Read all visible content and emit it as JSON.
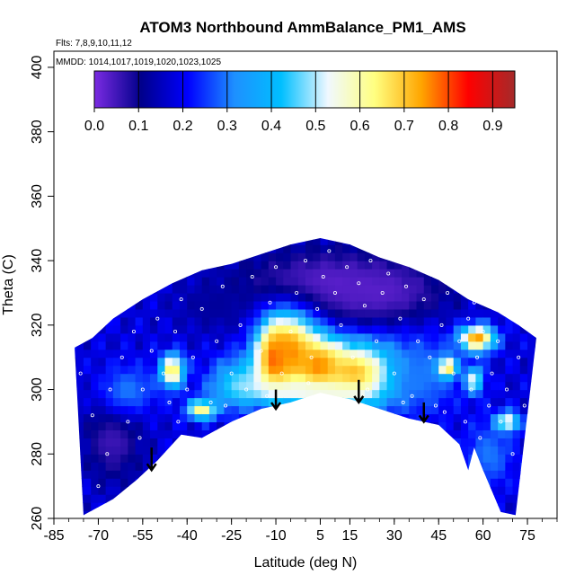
{
  "chart_data": {
    "type": "heatmap",
    "title": "ATOM3 Northbound AmmBalance_PM1_AMS",
    "flights_note": "Flts: 7,8,9,10,11,12",
    "dates_note": "MMDD: 1014,1017,1019,1020,1023,1025",
    "xlabel": "Latitude (deg N)",
    "ylabel": "Theta (C)",
    "xlim": [
      -85,
      85
    ],
    "ylim": [
      260,
      405
    ],
    "x_ticks": [
      -85,
      -70,
      -55,
      -40,
      -25,
      -10,
      5,
      15,
      30,
      45,
      60,
      75
    ],
    "x_tick_labels": [
      "-85",
      "-70",
      "-55",
      "-40",
      "-25",
      "-10",
      "5",
      "15",
      "30",
      "45",
      "60",
      "75"
    ],
    "y_ticks": [
      260,
      280,
      300,
      320,
      340,
      360,
      380,
      400
    ],
    "y_tick_labels": [
      "260",
      "280",
      "300",
      "320",
      "340",
      "360",
      "380",
      "400"
    ],
    "colorbar": {
      "range": [
        0,
        0.95
      ],
      "ticks": [
        0.0,
        0.1,
        0.2,
        0.3,
        0.4,
        0.5,
        0.6,
        0.7,
        0.8,
        0.9
      ],
      "tick_labels": [
        "0.0",
        "0.1",
        "0.2",
        "0.3",
        "0.4",
        "0.5",
        "0.6",
        "0.7",
        "0.8",
        "0.9"
      ],
      "colors": [
        "#7B2BE2",
        "#00008B",
        "#0000FF",
        "#1E90FF",
        "#00BFFF",
        "#F0F8FF",
        "#FFFF80",
        "#FFA500",
        "#FF0000",
        "#A52A2A"
      ]
    },
    "coverage_lower_boundary": [
      {
        "lat": -75,
        "theta": 261
      },
      {
        "lat": -65,
        "theta": 266
      },
      {
        "lat": -57,
        "theta": 272
      },
      {
        "lat": -50,
        "theta": 278
      },
      {
        "lat": -42,
        "theta": 286
      },
      {
        "lat": -35,
        "theta": 285
      },
      {
        "lat": -25,
        "theta": 290
      },
      {
        "lat": -15,
        "theta": 294
      },
      {
        "lat": -5,
        "theta": 296
      },
      {
        "lat": 5,
        "theta": 299
      },
      {
        "lat": 15,
        "theta": 297
      },
      {
        "lat": 25,
        "theta": 294
      },
      {
        "lat": 35,
        "theta": 291
      },
      {
        "lat": 45,
        "theta": 289
      },
      {
        "lat": 52,
        "theta": 283
      },
      {
        "lat": 55,
        "theta": 275
      },
      {
        "lat": 57,
        "theta": 282
      },
      {
        "lat": 60,
        "theta": 275
      },
      {
        "lat": 66,
        "theta": 262
      },
      {
        "lat": 71,
        "theta": 261
      }
    ],
    "coverage_upper_boundary": [
      {
        "lat": -78,
        "theta": 313
      },
      {
        "lat": -72,
        "theta": 316
      },
      {
        "lat": -65,
        "theta": 322
      },
      {
        "lat": -55,
        "theta": 328
      },
      {
        "lat": -45,
        "theta": 333
      },
      {
        "lat": -35,
        "theta": 337
      },
      {
        "lat": -25,
        "theta": 339
      },
      {
        "lat": -15,
        "theta": 342
      },
      {
        "lat": -5,
        "theta": 345
      },
      {
        "lat": 5,
        "theta": 347
      },
      {
        "lat": 15,
        "theta": 345
      },
      {
        "lat": 25,
        "theta": 341
      },
      {
        "lat": 35,
        "theta": 338
      },
      {
        "lat": 45,
        "theta": 334
      },
      {
        "lat": 55,
        "theta": 328
      },
      {
        "lat": 65,
        "theta": 324
      },
      {
        "lat": 72,
        "theta": 320
      },
      {
        "lat": 78,
        "theta": 316
      }
    ],
    "background_value": 0.18,
    "features": [
      {
        "lat": 5,
        "theta": 332,
        "value": 0.02,
        "lat_width": 30,
        "theta_height": 12
      },
      {
        "lat": 25,
        "theta": 330,
        "value": 0.03,
        "lat_width": 22,
        "theta_height": 10
      },
      {
        "lat": -30,
        "theta": 326,
        "value": 0.12,
        "lat_width": 14,
        "theta_height": 8
      },
      {
        "lat": -65,
        "theta": 285,
        "value": 0.05,
        "lat_width": 10,
        "theta_height": 14
      },
      {
        "lat": -60,
        "theta": 300,
        "value": 0.3,
        "lat_width": 10,
        "theta_height": 8
      },
      {
        "lat": -45,
        "theta": 306,
        "value": 0.68,
        "lat_width": 4,
        "theta_height": 5
      },
      {
        "lat": -35,
        "theta": 294,
        "value": 0.66,
        "lat_width": 5,
        "theta_height": 3
      },
      {
        "lat": -22,
        "theta": 302,
        "value": 0.45,
        "lat_width": 10,
        "theta_height": 8
      },
      {
        "lat": -10,
        "theta": 310,
        "value": 0.86,
        "lat_width": 6,
        "theta_height": 10
      },
      {
        "lat": -5,
        "theta": 312,
        "value": 0.75,
        "lat_width": 10,
        "theta_height": 12
      },
      {
        "lat": 5,
        "theta": 307,
        "value": 0.8,
        "lat_width": 8,
        "theta_height": 8
      },
      {
        "lat": 17,
        "theta": 305,
        "value": 0.72,
        "lat_width": 16,
        "theta_height": 10
      },
      {
        "lat": 0,
        "theta": 300,
        "value": 0.55,
        "lat_width": 20,
        "theta_height": 3
      },
      {
        "lat": 40,
        "theta": 305,
        "value": 0.3,
        "lat_width": 12,
        "theta_height": 12
      },
      {
        "lat": 48,
        "theta": 307,
        "value": 0.7,
        "lat_width": 3,
        "theta_height": 3
      },
      {
        "lat": 58,
        "theta": 316,
        "value": 0.75,
        "lat_width": 6,
        "theta_height": 4
      },
      {
        "lat": 57,
        "theta": 303,
        "value": 0.55,
        "lat_width": 3,
        "theta_height": 4
      },
      {
        "lat": 68,
        "theta": 290,
        "value": 0.65,
        "lat_width": 4,
        "theta_height": 3
      },
      {
        "lat": 62,
        "theta": 280,
        "value": 0.3,
        "lat_width": 8,
        "theta_height": 10
      }
    ],
    "arrows": [
      {
        "lat": -52,
        "theta_from": 282,
        "theta_to": 275
      },
      {
        "lat": -10,
        "theta_from": 300,
        "theta_to": 294
      },
      {
        "lat": 18,
        "theta_from": 303,
        "theta_to": 296
      },
      {
        "lat": 40,
        "theta_from": 296,
        "theta_to": 290
      }
    ],
    "observation_points": [
      {
        "lat": -76,
        "theta": 305
      },
      {
        "lat": -72,
        "theta": 292
      },
      {
        "lat": -70,
        "theta": 270
      },
      {
        "lat": -66,
        "theta": 300
      },
      {
        "lat": -62,
        "theta": 310
      },
      {
        "lat": -60,
        "theta": 290
      },
      {
        "lat": -58,
        "theta": 318
      },
      {
        "lat": -55,
        "theta": 300
      },
      {
        "lat": -52,
        "theta": 312
      },
      {
        "lat": -50,
        "theta": 322
      },
      {
        "lat": -48,
        "theta": 305
      },
      {
        "lat": -46,
        "theta": 296
      },
      {
        "lat": -44,
        "theta": 318
      },
      {
        "lat": -42,
        "theta": 328
      },
      {
        "lat": -40,
        "theta": 300
      },
      {
        "lat": -38,
        "theta": 310
      },
      {
        "lat": -35,
        "theta": 325
      },
      {
        "lat": -32,
        "theta": 296
      },
      {
        "lat": -30,
        "theta": 315
      },
      {
        "lat": -28,
        "theta": 332
      },
      {
        "lat": -25,
        "theta": 305
      },
      {
        "lat": -22,
        "theta": 320
      },
      {
        "lat": -20,
        "theta": 300
      },
      {
        "lat": -18,
        "theta": 335
      },
      {
        "lat": -15,
        "theta": 312
      },
      {
        "lat": -12,
        "theta": 327
      },
      {
        "lat": -10,
        "theta": 338
      },
      {
        "lat": -8,
        "theta": 305
      },
      {
        "lat": -5,
        "theta": 318
      },
      {
        "lat": -3,
        "theta": 330
      },
      {
        "lat": 0,
        "theta": 340
      },
      {
        "lat": 2,
        "theta": 310
      },
      {
        "lat": 4,
        "theta": 325
      },
      {
        "lat": 6,
        "theta": 335
      },
      {
        "lat": 8,
        "theta": 343
      },
      {
        "lat": 10,
        "theta": 330
      },
      {
        "lat": 12,
        "theta": 320
      },
      {
        "lat": 14,
        "theta": 338
      },
      {
        "lat": 16,
        "theta": 310
      },
      {
        "lat": 18,
        "theta": 333
      },
      {
        "lat": 20,
        "theta": 326
      },
      {
        "lat": 22,
        "theta": 340
      },
      {
        "lat": 24,
        "theta": 315
      },
      {
        "lat": 26,
        "theta": 330
      },
      {
        "lat": 28,
        "theta": 336
      },
      {
        "lat": 30,
        "theta": 305
      },
      {
        "lat": 32,
        "theta": 322
      },
      {
        "lat": 34,
        "theta": 332
      },
      {
        "lat": 36,
        "theta": 298
      },
      {
        "lat": 38,
        "theta": 315
      },
      {
        "lat": 40,
        "theta": 328
      },
      {
        "lat": 42,
        "theta": 310
      },
      {
        "lat": 44,
        "theta": 295
      },
      {
        "lat": 46,
        "theta": 320
      },
      {
        "lat": 48,
        "theta": 330
      },
      {
        "lat": 50,
        "theta": 305
      },
      {
        "lat": 52,
        "theta": 315
      },
      {
        "lat": 54,
        "theta": 290
      },
      {
        "lat": 55,
        "theta": 322
      },
      {
        "lat": 56,
        "theta": 300
      },
      {
        "lat": 58,
        "theta": 310
      },
      {
        "lat": 59,
        "theta": 285
      },
      {
        "lat": 60,
        "theta": 318
      },
      {
        "lat": 62,
        "theta": 295
      },
      {
        "lat": 63,
        "theta": 305
      },
      {
        "lat": 65,
        "theta": 315
      },
      {
        "lat": 66,
        "theta": 290
      },
      {
        "lat": 68,
        "theta": 300
      },
      {
        "lat": 70,
        "theta": 280
      },
      {
        "lat": 72,
        "theta": 310
      },
      {
        "lat": 74,
        "theta": 295
      },
      {
        "lat": -67,
        "theta": 280
      },
      {
        "lat": -56,
        "theta": 285
      },
      {
        "lat": -43,
        "theta": 290
      },
      {
        "lat": -27,
        "theta": 295
      },
      {
        "lat": -13,
        "theta": 298
      },
      {
        "lat": 1,
        "theta": 302
      },
      {
        "lat": 21,
        "theta": 300
      },
      {
        "lat": 33,
        "theta": 296
      },
      {
        "lat": 47,
        "theta": 293
      },
      {
        "lat": 57,
        "theta": 327
      }
    ]
  }
}
